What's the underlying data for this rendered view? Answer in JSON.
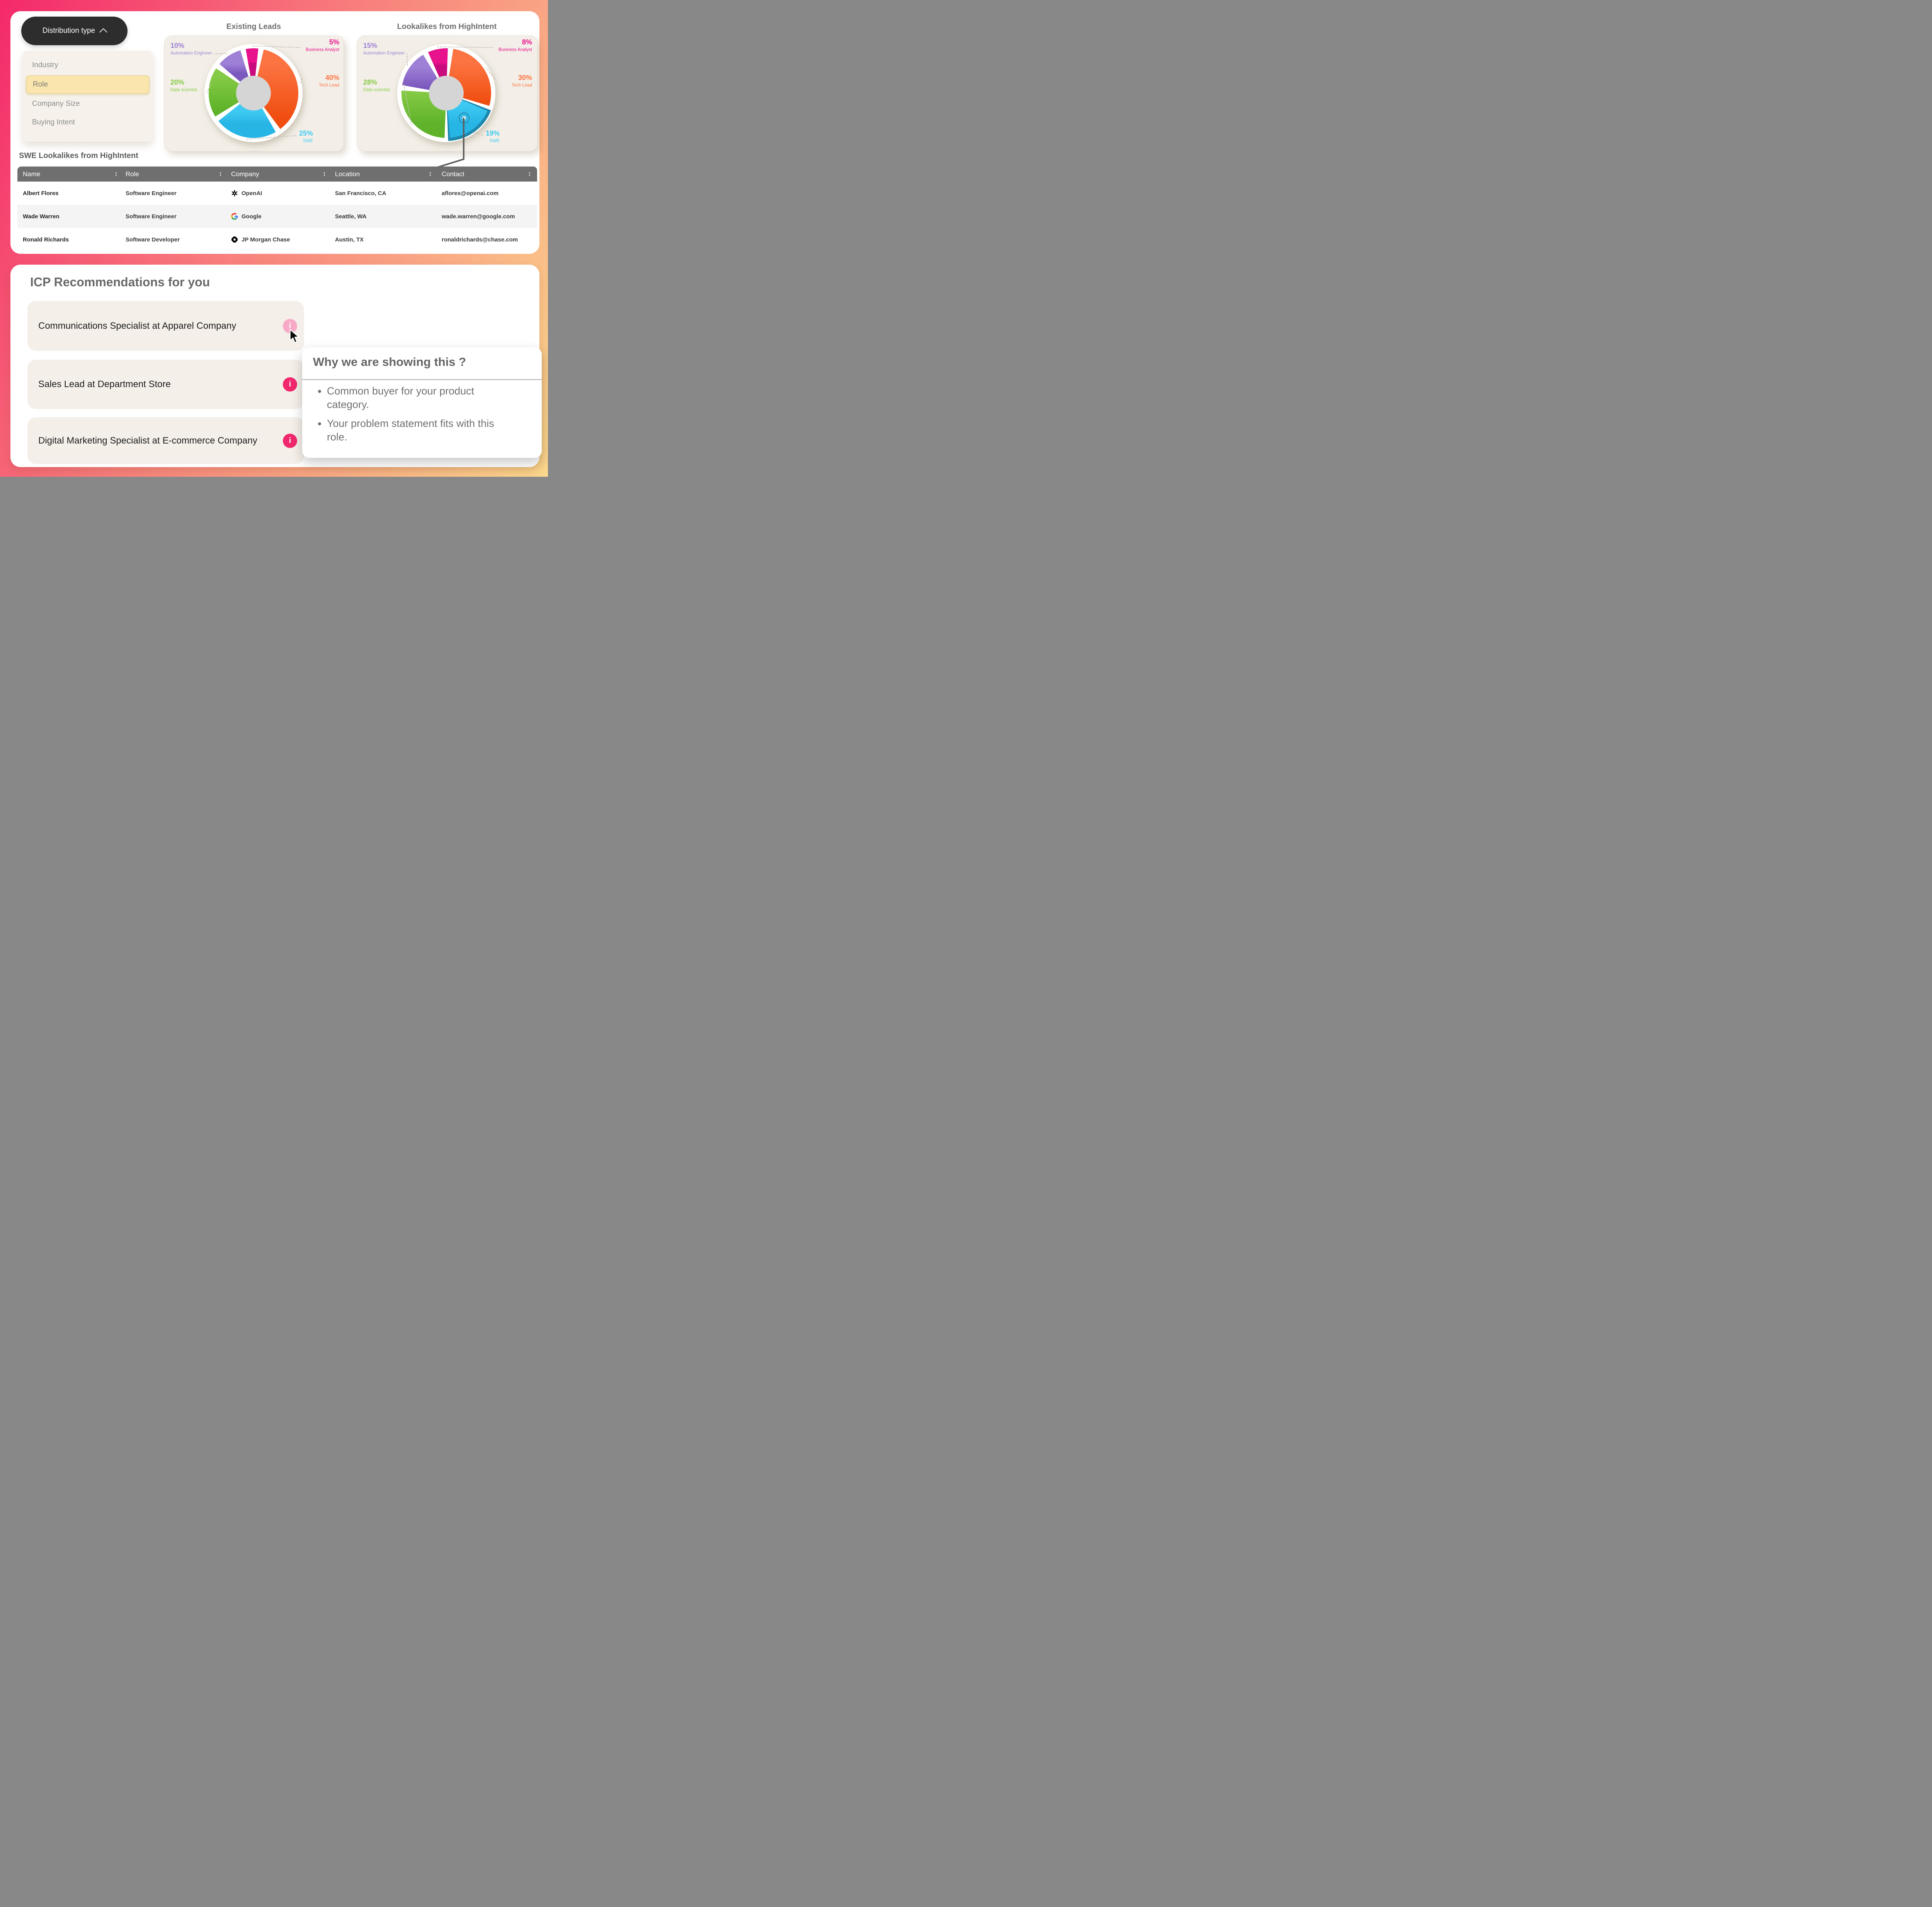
{
  "filter": {
    "button_label": "Distribution type",
    "options": [
      {
        "label": "Industry",
        "selected": false
      },
      {
        "label": "Role",
        "selected": true
      },
      {
        "label": "Company Size",
        "selected": false
      },
      {
        "label": "Buying Intent",
        "selected": false
      }
    ]
  },
  "charts": [
    {
      "title": "Existing Leads",
      "segments": [
        {
          "label": "Business Analyst",
          "pct": "5%",
          "value": 5,
          "color": "#E8128C",
          "color2": "#C90C7D"
        },
        {
          "label": "Tech Lead",
          "pct": "40%",
          "value": 40,
          "color": "#FC7442",
          "color2": "#F04E10"
        },
        {
          "label": "SWE",
          "pct": "25%",
          "value": 25,
          "color": "#3DC9F2",
          "color2": "#27B5E5"
        },
        {
          "label": "Data scientist",
          "pct": "20%",
          "value": 20,
          "color": "#86CB45",
          "color2": "#5FB32A"
        },
        {
          "label": "Automation Engineer",
          "pct": "10%",
          "value": 10,
          "color": "#9E80D6",
          "color2": "#7B58BE"
        }
      ]
    },
    {
      "title": "Lookalikes from HighIntent",
      "segments": [
        {
          "label": "Business Analyst",
          "pct": "8%",
          "value": 8,
          "color": "#E8128C",
          "color2": "#C90C7D"
        },
        {
          "label": "Tech Lead",
          "pct": "30%",
          "value": 30,
          "color": "#FC7442",
          "color2": "#F04E10"
        },
        {
          "label": "SWE",
          "pct": "19%",
          "value": 19,
          "color": "#3DC9F2",
          "color2": "#27B5E5",
          "highlighted": true
        },
        {
          "label": "Data scientist",
          "pct": "28%",
          "value": 28,
          "color": "#86CB45",
          "color2": "#5FB32A"
        },
        {
          "label": "Automation Engineer",
          "pct": "15%",
          "value": 15,
          "color": "#9E80D6",
          "color2": "#7B58BE"
        }
      ]
    }
  ],
  "chart_data": [
    {
      "type": "pie",
      "title": "Existing Leads",
      "labels": [
        "Business Analyst",
        "Tech Lead",
        "SWE",
        "Data scientist",
        "Automation Engineer"
      ],
      "values": [
        5,
        40,
        25,
        20,
        10
      ],
      "unit": "%"
    },
    {
      "type": "pie",
      "title": "Lookalikes from HighIntent",
      "labels": [
        "Business Analyst",
        "Tech Lead",
        "SWE",
        "Data scientist",
        "Automation Engineer"
      ],
      "values": [
        8,
        30,
        19,
        28,
        15
      ],
      "unit": "%",
      "highlighted": "SWE"
    }
  ],
  "table": {
    "title": "SWE Lookalikes from HighIntent",
    "columns": [
      "Name",
      "Role",
      "Company",
      "Location",
      "Contact"
    ],
    "rows": [
      {
        "name": "Albert Flores",
        "role": "Software Engineer",
        "company": "OpenAI",
        "logo": "openai-logo",
        "location": "San Francisco, CA",
        "contact": "aflores@openai.com"
      },
      {
        "name": "Wade Warren",
        "role": "Software Engineer",
        "company": "Google",
        "logo": "google-logo",
        "location": "Seattle, WA",
        "contact": "wade.warren@google.com"
      },
      {
        "name": "Ronald Richards",
        "role": "Software Developer",
        "company": "JP Morgan Chase",
        "logo": "chase-logo",
        "location": "Austin, TX",
        "contact": "ronaldrichards@chase.com"
      }
    ]
  },
  "icp": {
    "title": "ICP Recommendations for you",
    "items": [
      {
        "label": "Communications Specialist at Apparel Company",
        "icon": "info-icon",
        "state": "hover"
      },
      {
        "label": "Sales Lead at Department Store",
        "icon": "info-icon",
        "state": "default"
      },
      {
        "label": "Digital Marketing Specialist at E-commerce Company",
        "icon": "info-icon",
        "state": "default"
      }
    ]
  },
  "tooltip": {
    "title": "Why we are showing this ?",
    "bullets": [
      "Common buyer for your product category.",
      "Your problem statement fits with this role."
    ]
  },
  "colors": {
    "accent_pink": "#F2286E",
    "accent_pink_light": "#F8A9C7",
    "selected_option_bg": "#FAE6AC",
    "table_header": "#6F6F6F",
    "bg_gradient": [
      "#F4296A",
      "#F8807D",
      "#FBD88D"
    ]
  }
}
